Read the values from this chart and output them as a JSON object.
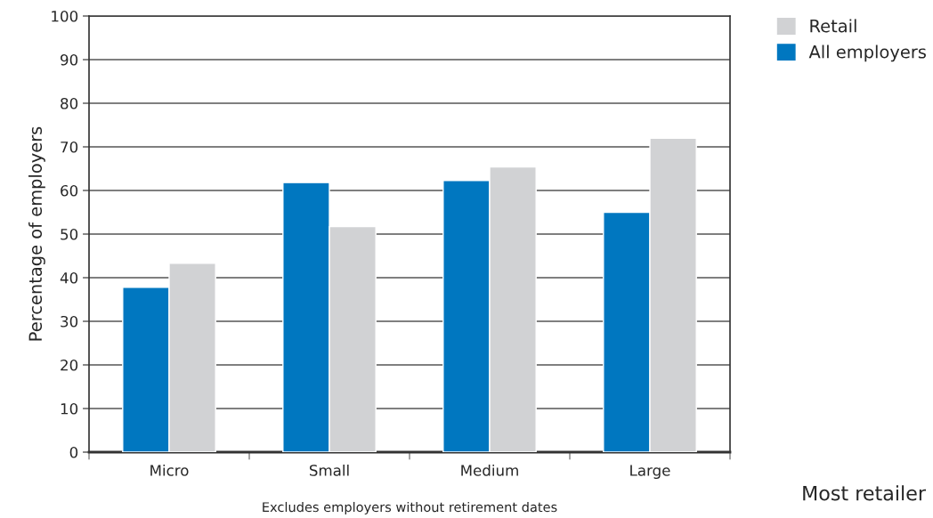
{
  "chart_data": {
    "type": "bar",
    "ylabel": "Percentage of employers",
    "categories": [
      "Micro",
      "Small",
      "Medium",
      "Large"
    ],
    "series": [
      {
        "name": "All employers",
        "color": "#0077c0",
        "values": [
          37.8,
          61.8,
          62.3,
          55.0
        ]
      },
      {
        "name": "Retail",
        "color": "#d1d2d4",
        "values": [
          43.3,
          51.7,
          65.4,
          72.0
        ]
      }
    ],
    "ylim": [
      0,
      100
    ],
    "yticks": [
      0,
      10,
      20,
      30,
      40,
      50,
      60,
      70,
      80,
      90,
      100
    ],
    "grid": "y",
    "legend": "top right",
    "annotations": [
      "Excludes employers without retirement dates",
      "Most retailer"
    ]
  }
}
